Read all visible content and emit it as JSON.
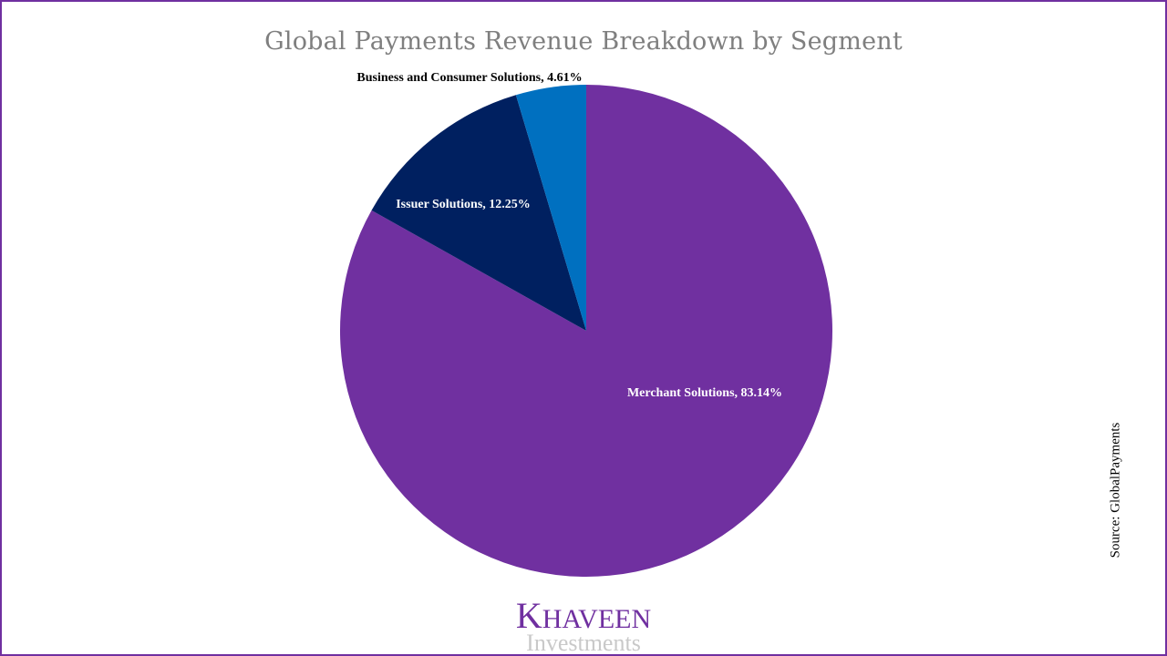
{
  "chart_data": {
    "type": "pie",
    "title": "Global Payments Revenue Breakdown by Segment",
    "slices": [
      {
        "label": "Merchant Solutions",
        "value": 83.14,
        "display": "Merchant Solutions, 83.14%",
        "color": "#7030a0",
        "label_color": "#ffffff"
      },
      {
        "label": "Issuer Solutions",
        "value": 12.25,
        "display": "Issuer Solutions, 12.25%",
        "color": "#002060",
        "label_color": "#ffffff"
      },
      {
        "label": "Business and Consumer Solutions",
        "value": 4.61,
        "display": "Business and Consumer Solutions, 4.61%",
        "color": "#0070c0",
        "label_color": "#000000"
      }
    ],
    "start_angle": "12 o'clock",
    "direction": "clockwise"
  },
  "source": "Source: GlobalPayments",
  "logo": {
    "first_letter": "K",
    "rest": "HAVEEN",
    "subtitle": "Investments"
  },
  "colors": {
    "accent": "#7030a0",
    "title": "#7f7f7f",
    "frame": "#7030a0"
  }
}
